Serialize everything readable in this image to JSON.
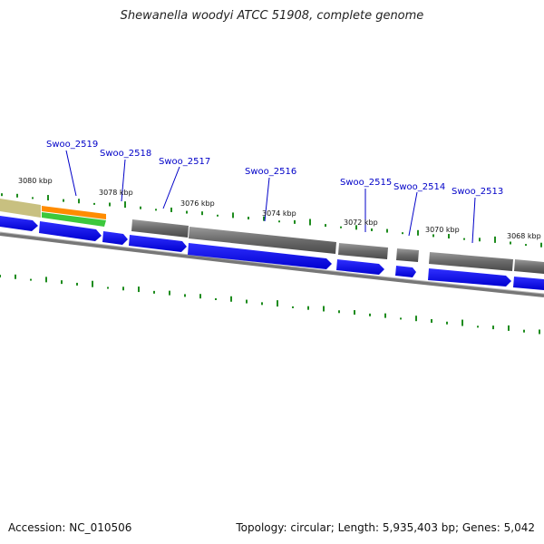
{
  "title": "Shewanella woodyi ATCC 51908, complete genome",
  "footer": {
    "accession": "Accession: NC_010506",
    "summary": "Topology: circular; Length: 5,935,403 bp; Genes: 5,042"
  },
  "colors": {
    "gene_label": "#0000c8",
    "cds_forward": "#0000ff",
    "gene_gray": "#6e6e6e",
    "gc_tick": "#1e8c1e",
    "backbone": "#888888",
    "orange_track": "#ff8c00",
    "green_track": "#3cc83c",
    "tan_track": "#c8c080"
  },
  "gene_labels": [
    "Swoo_2519",
    "Swoo_2518",
    "Swoo_2517",
    "Swoo_2516",
    "Swoo_2515",
    "Swoo_2514",
    "Swoo_2513"
  ],
  "kbp_labels": [
    "3080 kbp",
    "3078 kbp",
    "3076 kbp",
    "3074 kbp",
    "3072 kbp",
    "3070 kbp",
    "3068 kbp"
  ]
}
